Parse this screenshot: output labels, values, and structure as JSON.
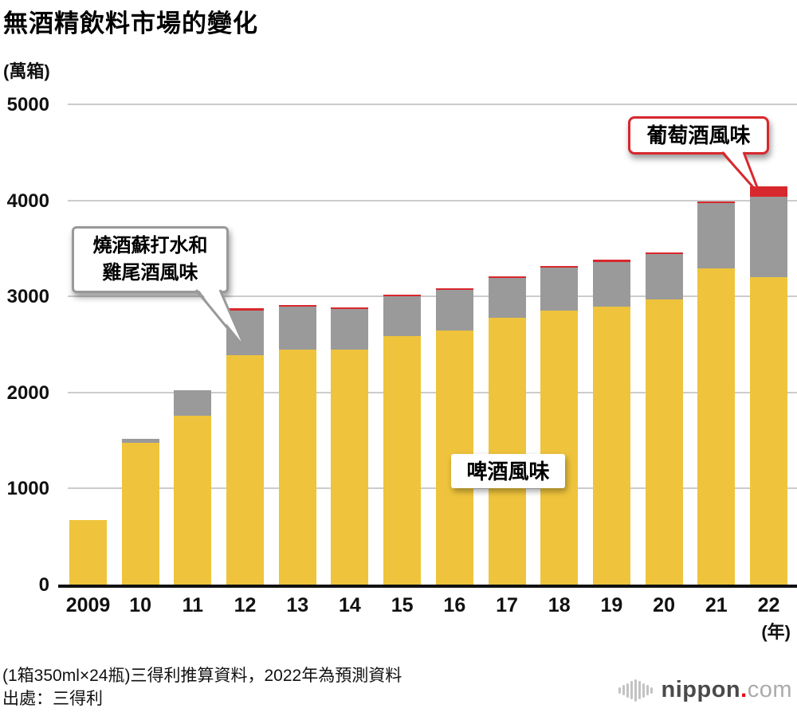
{
  "title": "無酒精飲料市場的變化",
  "y_axis": {
    "unit": "(萬箱)",
    "ticks": [
      0,
      1000,
      2000,
      3000,
      4000,
      5000
    ],
    "max": 5000
  },
  "x_axis": {
    "year_suffix": "(年)"
  },
  "chart_data": {
    "type": "bar",
    "stacked": true,
    "title": "無酒精飲料市場的變化",
    "ylabel": "(萬箱)",
    "ylim": [
      0,
      5000
    ],
    "grid": true,
    "legend_position": "none (series labeled via callout annotations)",
    "categories": [
      "2009",
      "10",
      "11",
      "12",
      "13",
      "14",
      "15",
      "16",
      "17",
      "18",
      "19",
      "20",
      "21",
      "22"
    ],
    "series": [
      {
        "name": "啤酒風味",
        "color": "#EFC43C",
        "values": [
          670,
          1475,
          1760,
          2390,
          2445,
          2450,
          2590,
          2645,
          2780,
          2855,
          2895,
          2965,
          3295,
          3200
        ]
      },
      {
        "name": "燒酒蘇打水和雞尾酒風味",
        "color": "#9A9A9A",
        "values": [
          0,
          45,
          265,
          465,
          445,
          415,
          410,
          420,
          410,
          445,
          465,
          475,
          675,
          840
        ]
      },
      {
        "name": "葡萄酒風味",
        "color": "#D7282D",
        "values": [
          0,
          0,
          0,
          20,
          20,
          20,
          20,
          20,
          20,
          20,
          20,
          20,
          20,
          110
        ]
      }
    ],
    "totals": [
      670,
      1520,
      2025,
      2875,
      2910,
      2885,
      3020,
      3085,
      3210,
      3320,
      3380,
      3460,
      3990,
      4150
    ]
  },
  "annotations": {
    "shochu": {
      "line1": "燒酒蘇打水和",
      "line2": "雞尾酒風味",
      "border_color": "#999999",
      "points_to": "2012 gray segment"
    },
    "wine": {
      "label": "葡萄酒風味",
      "border_color": "#D7282D",
      "points_to": "2022 red segment"
    },
    "beer": {
      "label": "啤酒風味"
    }
  },
  "footer": {
    "note": "(1箱350ml×24瓶)三得利推算資料，2022年為預測資料",
    "source": "出處：三得利"
  },
  "logo": {
    "name": "nippon",
    "dot": ".",
    "tld": "com",
    "dot_color": "#E60012"
  }
}
